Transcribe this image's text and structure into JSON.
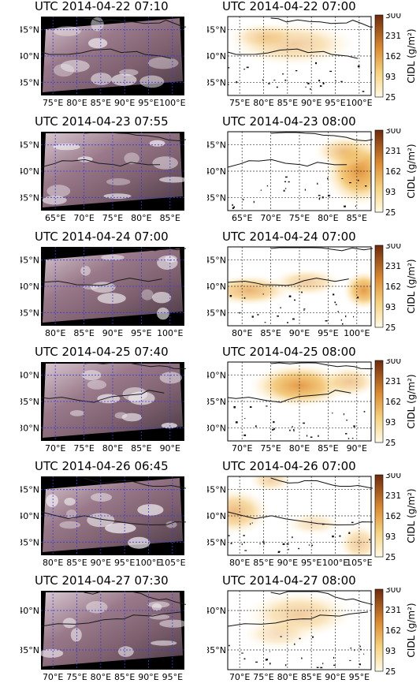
{
  "colorbar": {
    "label": "CIDL (g/m²)",
    "ticks": [
      "300",
      "231",
      "162",
      "93",
      "25"
    ]
  },
  "rows": [
    {
      "sat_title": "UTC 2014-04-22 07:10",
      "cidl_title": "UTC 2014-04-22 07:00",
      "sat_lat": [
        "45°N",
        "40°N",
        "35°N"
      ],
      "sat_lon": [
        "75°E",
        "80°E",
        "85°E",
        "90°E",
        "95°E",
        "100°E"
      ],
      "cidl_lat": [
        "45°N",
        "40°N",
        "35°N"
      ],
      "cidl_lon": [
        "75°E",
        "80°E",
        "85°E",
        "90°E",
        "95°E",
        "100°E"
      ]
    },
    {
      "sat_title": "UTC 2014-04-23 07:55",
      "cidl_title": "UTC 2014-04-23 08:00",
      "sat_lat": [
        "45°N",
        "40°N",
        "35°N"
      ],
      "sat_lon": [
        "65°E",
        "70°E",
        "75°E",
        "80°E",
        "85°E"
      ],
      "cidl_lat": [
        "45°N",
        "40°N",
        "35°N"
      ],
      "cidl_lon": [
        "65°E",
        "70°E",
        "75°E",
        "80°E",
        "85°E"
      ]
    },
    {
      "sat_title": "UTC 2014-04-24 07:00",
      "cidl_title": "UTC 2014-04-24 07:00",
      "sat_lat": [
        "45°N",
        "40°N",
        "35°N"
      ],
      "sat_lon": [
        "80°E",
        "85°E",
        "90°E",
        "95°E",
        "100°E"
      ],
      "cidl_lat": [
        "45°N",
        "40°N",
        "35°N"
      ],
      "cidl_lon": [
        "80°E",
        "85°E",
        "90°E",
        "95°E",
        "100°E"
      ]
    },
    {
      "sat_title": "UTC 2014-04-25 07:40",
      "cidl_title": "UTC 2014-04-25 08:00",
      "sat_lat": [
        "40°N",
        "35°N",
        "30°N"
      ],
      "sat_lon": [
        "70°E",
        "75°E",
        "80°E",
        "85°E",
        "90°E"
      ],
      "cidl_lat": [
        "40°N",
        "35°N",
        "30°N"
      ],
      "cidl_lon": [
        "70°E",
        "75°E",
        "80°E",
        "85°E",
        "90°E"
      ]
    },
    {
      "sat_title": "UTC 2014-04-26 06:45",
      "cidl_title": "UTC 2014-04-26 07:00",
      "sat_lat": [
        "45°N",
        "40°N",
        "35°N"
      ],
      "sat_lon": [
        "80°E",
        "85°E",
        "90°E",
        "95°E",
        "100°E",
        "105°E"
      ],
      "cidl_lat": [
        "45°N",
        "40°N",
        "35°N"
      ],
      "cidl_lon": [
        "80°E",
        "85°E",
        "90°E",
        "95°E",
        "100°E",
        "105°E"
      ]
    },
    {
      "sat_title": "UTC 2014-04-27 07:30",
      "cidl_title": "UTC 2014-04-27 08:00",
      "sat_lat": [
        "40°N",
        "35°N"
      ],
      "sat_lon": [
        "70°E",
        "75°E",
        "80°E",
        "85°E",
        "90°E",
        "95°E"
      ],
      "cidl_lat": [
        "40°N",
        "35°N"
      ],
      "cidl_lon": [
        "70°E",
        "75°E",
        "80°E",
        "85°E",
        "90°E",
        "95°E"
      ]
    }
  ]
}
